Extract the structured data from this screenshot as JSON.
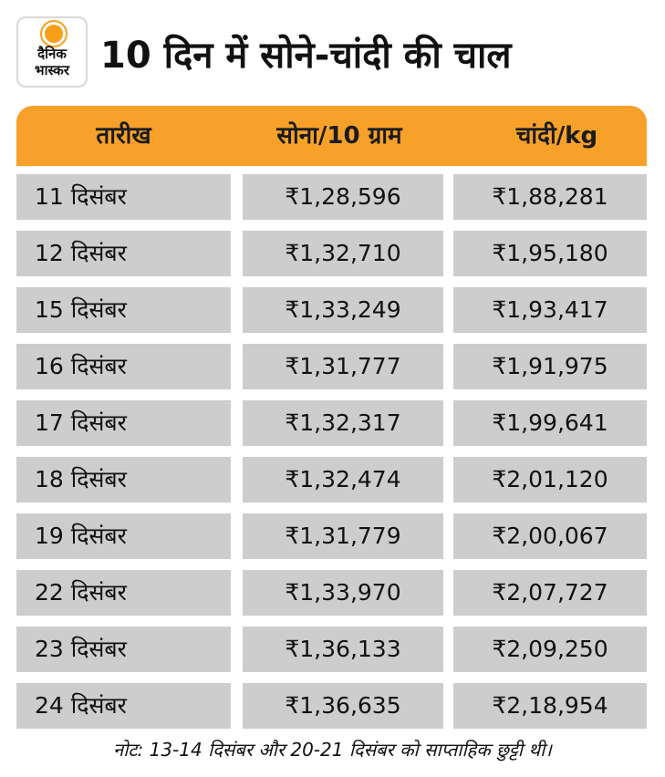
{
  "logo": {
    "line1": "दैनिक",
    "line2": "भास्कर"
  },
  "title": "10 दिन में सोने-चांदी की चाल",
  "table": {
    "headers": {
      "date": "तारीख",
      "gold": "सोना/10 ग्राम",
      "silver": "चांदी/kg"
    },
    "rows": [
      {
        "date": "11 दिसंबर",
        "gold": "₹1,28,596",
        "silver": "₹1,88,281"
      },
      {
        "date": "12 दिसंबर",
        "gold": "₹1,32,710",
        "silver": "₹1,95,180"
      },
      {
        "date": "15 दिसंबर",
        "gold": "₹1,33,249",
        "silver": "₹1,93,417"
      },
      {
        "date": "16 दिसंबर",
        "gold": "₹1,31,777",
        "silver": "₹1,91,975"
      },
      {
        "date": "17 दिसंबर",
        "gold": "₹1,32,317",
        "silver": "₹1,99,641"
      },
      {
        "date": "18 दिसंबर",
        "gold": "₹1,32,474",
        "silver": "₹2,01,120"
      },
      {
        "date": "19 दिसंबर",
        "gold": "₹1,31,779",
        "silver": "₹2,00,067"
      },
      {
        "date": "22 दिसंबर",
        "gold": "₹1,33,970",
        "silver": "₹2,07,727"
      },
      {
        "date": "23 दिसंबर",
        "gold": "₹1,36,133",
        "silver": "₹2,09,250"
      },
      {
        "date": "24 दिसंबर",
        "gold": "₹1,36,635",
        "silver": "₹2,18,954"
      }
    ]
  },
  "note": "नोट: 13-14 दिसंबर और 20-21 दिसंबर को साप्ताहिक छुट्टी थी।",
  "colors": {
    "header": "#f7a12a",
    "cell": "#cdcdcd",
    "logo_sun": "#f6a01a"
  }
}
